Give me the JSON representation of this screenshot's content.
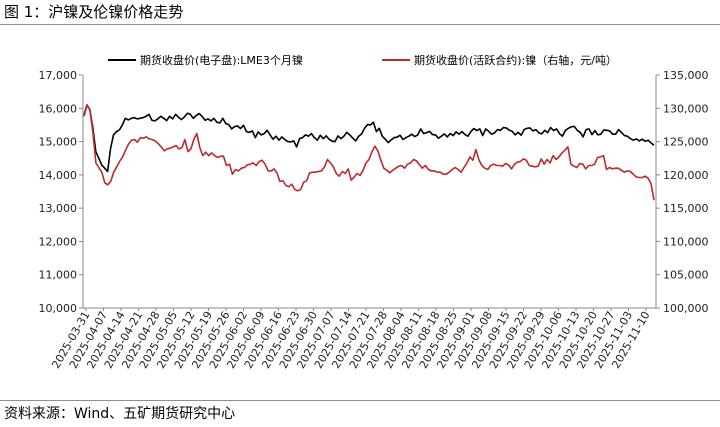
{
  "figure": {
    "title": "图 1：沪镍及伦镍价格走势",
    "source": "资料来源：Wind、五矿期货研究中心"
  },
  "chart_data": {
    "type": "line",
    "legend_position": "top",
    "grid": false,
    "y_left": {
      "range": [
        10000,
        17000
      ],
      "ticks": [
        "10,000",
        "11,000",
        "12,000",
        "13,000",
        "14,000",
        "15,000",
        "16,000",
        "17,000"
      ]
    },
    "y_right": {
      "range": [
        100000,
        135000
      ],
      "ticks": [
        "100,000",
        "105,000",
        "110,000",
        "115,000",
        "120,000",
        "125,000",
        "130,000",
        "135,000"
      ]
    },
    "x_ticks": [
      "2025-03-31",
      "2025-04-07",
      "2025-04-14",
      "2025-04-21",
      "2025-04-28",
      "2025-05-05",
      "2025-05-12",
      "2025-05-19",
      "2025-05-26",
      "2025-06-02",
      "2025-06-09",
      "2025-06-16",
      "2025-06-23",
      "2025-06-30",
      "2025-07-07",
      "2025-07-14",
      "2025-07-21",
      "2025-07-28",
      "2025-08-04",
      "2025-08-11",
      "2025-08-18",
      "2025-08-25",
      "2025-09-01",
      "2025-09-08",
      "2025-09-15",
      "2025-09-22",
      "2025-09-29",
      "2025-10-06",
      "2025-10-13",
      "2025-10-20",
      "2025-10-27",
      "2025-11-03",
      "2025-11-10"
    ],
    "series": [
      {
        "name": "期货收盘价(电子盘):LME3个月镍",
        "color": "#000000",
        "axis": "left",
        "values": [
          15800,
          16100,
          15950,
          15400,
          14700,
          14500,
          14300,
          14200,
          14100,
          14800,
          15200,
          15300,
          15350,
          15500,
          15700,
          15650,
          15700,
          15720,
          15680,
          15700,
          15720,
          15760,
          15820,
          15640,
          15620,
          15680,
          15760,
          15700,
          15630,
          15760,
          15680,
          15820,
          15730,
          15660,
          15740,
          15850,
          15820,
          15700,
          15780,
          15840,
          15760,
          15640,
          15680,
          15620,
          15700,
          15580,
          15560,
          15700,
          15540,
          15510,
          15380,
          15450,
          15470,
          15390,
          15490,
          15300,
          15280,
          15320,
          15120,
          15290,
          15200,
          15240,
          15340,
          15200,
          15070,
          15160,
          15040,
          15140,
          15060,
          15000,
          14990,
          15020,
          14840,
          15090,
          15120,
          15200,
          15160,
          15240,
          15120,
          15040,
          15190,
          15090,
          15170,
          15070,
          15010,
          15000,
          15170,
          15090,
          15160,
          15280,
          15200,
          15100,
          15020,
          15160,
          15230,
          15400,
          15510,
          15500,
          15580,
          15300,
          15400,
          15160,
          15070,
          14970,
          15050,
          15120,
          15130,
          15190,
          15060,
          15120,
          15160,
          15220,
          15150,
          15200,
          15380,
          15240,
          15270,
          15310,
          15210,
          15200,
          15100,
          15160,
          15230,
          15140,
          15240,
          15180,
          15290,
          15220,
          15300,
          15210,
          15160,
          15300,
          15390,
          15330,
          15380,
          15180,
          15380,
          15310,
          15220,
          15260,
          15360,
          15340,
          15420,
          15410,
          15340,
          15310,
          15200,
          15280,
          15190,
          15360,
          15400,
          15410,
          15320,
          15360,
          15260,
          15230,
          15340,
          15270,
          15420,
          15330,
          15380,
          15240,
          15160,
          15340,
          15400,
          15440,
          15460,
          15340,
          15280,
          15140,
          15360,
          15380,
          15210,
          15330,
          15200,
          15220,
          15350,
          15340,
          15320,
          15220,
          15220,
          15360,
          15270,
          15180,
          15160,
          15090,
          15040,
          15080,
          15020,
          15070,
          15010,
          15040,
          14960,
          14890
        ]
      },
      {
        "name": "期货收盘价(活跃合约):镍（右轴，元/吨）",
        "color": "#c0282d",
        "axis": "right",
        "values": [
          128800,
          130500,
          129800,
          126400,
          121800,
          121100,
          120400,
          118800,
          118500,
          119000,
          120400,
          121200,
          122000,
          122700,
          123700,
          124600,
          125200,
          125300,
          124900,
          125600,
          125500,
          125700,
          125400,
          125300,
          125100,
          124700,
          124200,
          123600,
          123900,
          124000,
          124200,
          124400,
          123900,
          124100,
          125300,
          123500,
          123900,
          125300,
          126200,
          124100,
          122900,
          123400,
          122900,
          123300,
          122900,
          122600,
          122800,
          122800,
          121400,
          121600,
          120100,
          120800,
          120600,
          121000,
          121100,
          121500,
          121600,
          121800,
          121400,
          122000,
          122200,
          121600,
          120600,
          120600,
          120900,
          120300,
          119000,
          119100,
          118400,
          118200,
          118600,
          117800,
          117600,
          117800,
          118900,
          119100,
          120300,
          120400,
          120400,
          120500,
          120600,
          121200,
          122300,
          121800,
          121200,
          120200,
          119800,
          120500,
          120200,
          120900,
          119200,
          119700,
          120200,
          119900,
          120700,
          121800,
          122300,
          123500,
          124300,
          123600,
          122200,
          121000,
          120700,
          120300,
          120700,
          121000,
          121300,
          121400,
          121000,
          121600,
          121800,
          122300,
          122100,
          121500,
          121000,
          121400,
          120800,
          120600,
          120600,
          120400,
          120400,
          120100,
          120100,
          120400,
          120800,
          121100,
          120800,
          120400,
          121100,
          121800,
          122700,
          122200,
          123800,
          122300,
          121400,
          121000,
          120800,
          121400,
          121600,
          121400,
          121400,
          121300,
          121700,
          121500,
          120900,
          121600,
          121900,
          122000,
          122400,
          122200,
          121400,
          121300,
          121200,
          121300,
          122400,
          121600,
          122300,
          121800,
          122900,
          122300,
          122700,
          123300,
          123700,
          124200,
          121600,
          121300,
          121100,
          121700,
          121600,
          120900,
          121400,
          121400,
          121600,
          122600,
          122700,
          122900,
          120800,
          121100,
          120900,
          121000,
          121000,
          120700,
          120400,
          120600,
          120500,
          120100,
          119700,
          119600,
          119600,
          119800,
          119500,
          118700,
          116200
        ]
      }
    ]
  }
}
